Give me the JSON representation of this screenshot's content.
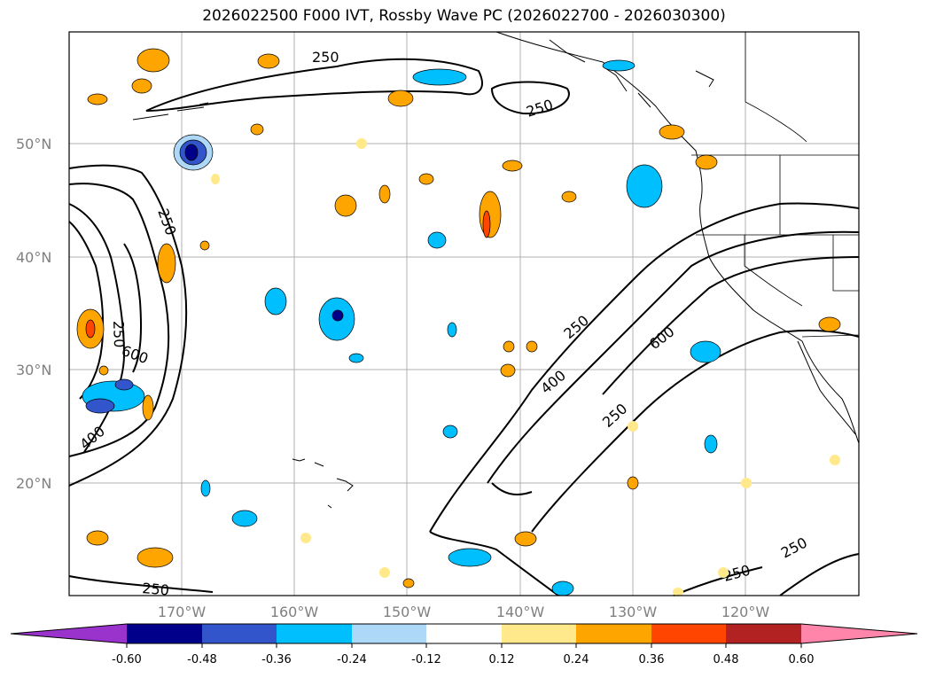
{
  "title": "2026022500 F000 IVT, Rossby Wave PC (2026022700 - 2026030300)",
  "latitude_labels": [
    "50°N",
    "40°N",
    "30°N",
    "20°N"
  ],
  "longitude_labels": [
    "170°W",
    "160°W",
    "150°W",
    "140°W",
    "130°W",
    "120°W"
  ],
  "contour_labels": {
    "c250_north": "250",
    "c250_ne": "250",
    "c250_west": "250",
    "c250_west2": "250",
    "c600_west": "600",
    "c400_west": "400",
    "c250_mid": "250",
    "c400_mid": "400",
    "c600_mid": "600",
    "c250_mid2": "250",
    "c250_south": "250",
    "c250_se1": "250",
    "c250_se2": "250"
  },
  "colorbar": {
    "ticks": [
      "-0.60",
      "-0.48",
      "-0.36",
      "-0.24",
      "-0.12",
      "0.12",
      "0.24",
      "0.36",
      "0.48",
      "0.60"
    ],
    "colors": {
      "under": "#9933cc",
      "b1": "#00008b",
      "b2": "#3355cc",
      "b3": "#00bfff",
      "b4": "#add8f7",
      "b5": "#ffffff",
      "b6": "#ffe98a",
      "b7": "#ffa500",
      "b8": "#ff4500",
      "b9": "#b22222",
      "over": "#ff85aa"
    }
  }
}
